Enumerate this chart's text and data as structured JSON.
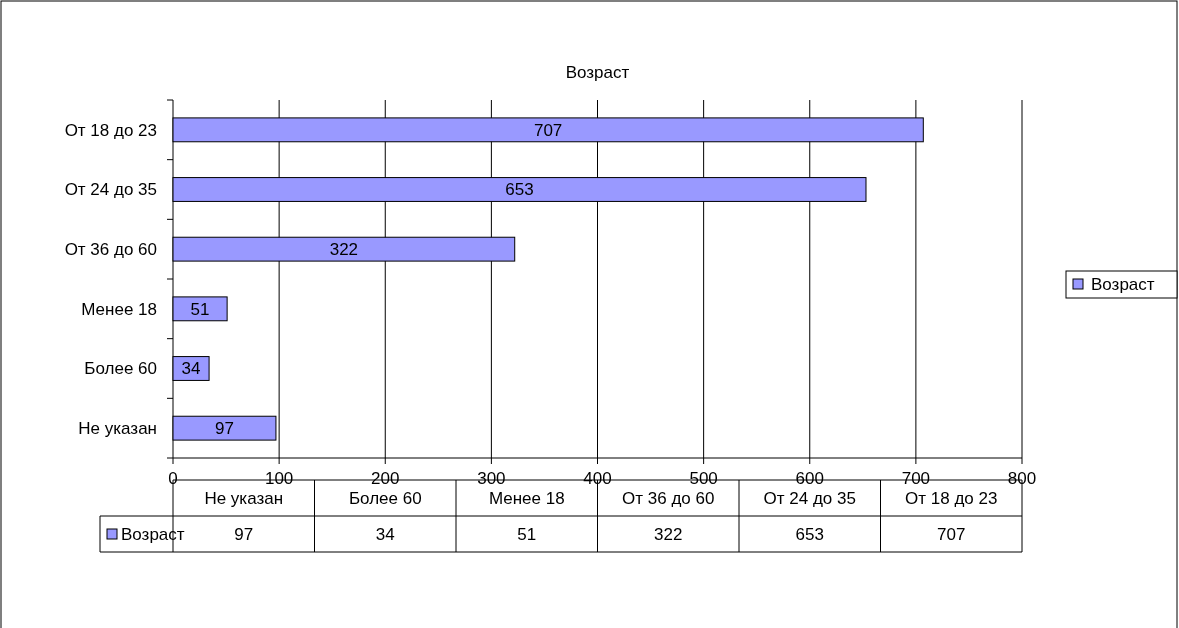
{
  "chart_data": [
    {
      "type": "bar",
      "orientation": "horizontal",
      "title": "Возраст",
      "categories": [
        "От 18 до 23",
        "От 24 до 35",
        "От 36 до 60",
        "Менее 18",
        "Более 60",
        "Не указан"
      ],
      "series": [
        {
          "name": "Возраст",
          "color": "#9999ff",
          "values": [
            707,
            653,
            322,
            51,
            34,
            97
          ]
        }
      ],
      "xlim": [
        0,
        800
      ],
      "xticks": [
        0,
        100,
        200,
        300,
        400,
        500,
        600,
        700,
        800
      ],
      "grid": "x",
      "legend": "right",
      "data_labels": true
    },
    {
      "type": "other",
      "categories": [
        "Не указан",
        "Более 60",
        "Менее 18",
        "От 36 до 60",
        "От 24 до 35",
        "От 18 до 23"
      ],
      "series": [
        {
          "name": "Возраст",
          "color": "#9999ff",
          "values": [
            97,
            34,
            51,
            322,
            653,
            707
          ]
        }
      ],
      "legend": "left",
      "data_labels": true
    }
  ]
}
